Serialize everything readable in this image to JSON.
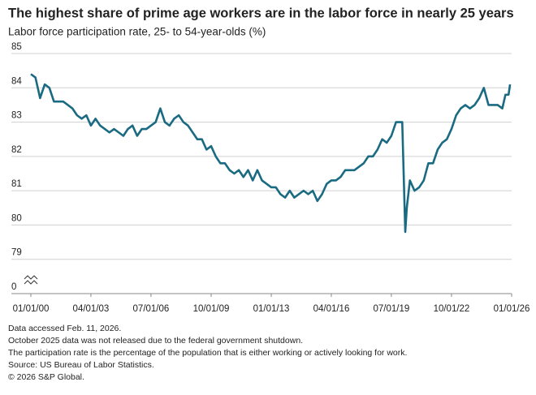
{
  "chart_data": {
    "type": "line",
    "title": "The highest share of prime age workers are in the labor force in nearly 25 years",
    "subtitle": "Labor force participation rate, 25- to 54-year-olds (%)",
    "x": [
      "01/01/00",
      "04/01/00",
      "07/01/00",
      "10/01/00",
      "01/01/01",
      "04/01/01",
      "07/01/01",
      "10/01/01",
      "01/01/02",
      "04/01/02",
      "07/01/02",
      "10/01/02",
      "01/01/03",
      "04/01/03",
      "07/01/03",
      "10/01/03",
      "01/01/04",
      "04/01/04",
      "07/01/04",
      "10/01/04",
      "01/01/05",
      "04/01/05",
      "07/01/05",
      "10/01/05",
      "01/01/06",
      "04/01/06",
      "07/01/06",
      "10/01/06",
      "01/01/07",
      "04/01/07",
      "07/01/07",
      "10/01/07",
      "01/01/08",
      "04/01/08",
      "07/01/08",
      "10/01/08",
      "01/01/09",
      "04/01/09",
      "07/01/09",
      "10/01/09",
      "01/01/10",
      "04/01/10",
      "07/01/10",
      "10/01/10",
      "01/01/11",
      "04/01/11",
      "07/01/11",
      "10/01/11",
      "01/01/12",
      "04/01/12",
      "07/01/12",
      "10/01/12",
      "01/01/13",
      "04/01/13",
      "07/01/13",
      "10/01/13",
      "01/01/14",
      "04/01/14",
      "07/01/14",
      "10/01/14",
      "01/01/15",
      "04/01/15",
      "07/01/15",
      "10/01/15",
      "01/01/16",
      "04/01/16",
      "07/01/16",
      "10/01/16",
      "01/01/17",
      "04/01/17",
      "07/01/17",
      "10/01/17",
      "01/01/18",
      "04/01/18",
      "07/01/18",
      "10/01/18",
      "01/01/19",
      "04/01/19",
      "07/01/19",
      "10/01/19",
      "01/01/20",
      "02/01/20",
      "04/01/20",
      "05/01/20",
      "07/01/20",
      "10/01/20",
      "01/01/21",
      "04/01/21",
      "07/01/21",
      "10/01/21",
      "01/01/22",
      "04/01/22",
      "07/01/22",
      "10/01/22",
      "01/01/23",
      "04/01/23",
      "07/01/23",
      "10/01/23",
      "01/01/24",
      "04/01/24",
      "07/01/24",
      "10/01/24",
      "01/01/25",
      "04/01/25",
      "07/01/25",
      "09/01/25",
      "11/01/25",
      "12/01/25"
    ],
    "series": [
      {
        "name": "Labor force participation rate",
        "color": "#1a6b82",
        "values": [
          84.4,
          84.3,
          83.7,
          84.1,
          84.0,
          83.6,
          83.6,
          83.6,
          83.5,
          83.4,
          83.2,
          83.1,
          83.2,
          82.9,
          83.1,
          82.9,
          82.8,
          82.7,
          82.8,
          82.7,
          82.6,
          82.8,
          82.9,
          82.6,
          82.8,
          82.8,
          82.9,
          83.0,
          83.4,
          83.0,
          82.9,
          83.1,
          83.2,
          83.0,
          82.9,
          82.7,
          82.5,
          82.5,
          82.2,
          82.3,
          82.0,
          81.8,
          81.8,
          81.6,
          81.5,
          81.6,
          81.4,
          81.6,
          81.3,
          81.6,
          81.3,
          81.2,
          81.1,
          81.1,
          80.9,
          80.8,
          81.0,
          80.8,
          80.9,
          81.0,
          80.9,
          81.0,
          80.7,
          80.9,
          81.2,
          81.3,
          81.3,
          81.4,
          81.6,
          81.6,
          81.6,
          81.7,
          81.8,
          82.0,
          82.0,
          82.2,
          82.5,
          82.4,
          82.6,
          83.0,
          83.0,
          83.0,
          79.8,
          80.5,
          81.3,
          81.0,
          81.1,
          81.3,
          81.8,
          81.8,
          82.2,
          82.4,
          82.5,
          82.8,
          83.2,
          83.4,
          83.5,
          83.4,
          83.5,
          83.7,
          84.0,
          83.5,
          83.5,
          83.5,
          83.4,
          83.8,
          83.8,
          84.1
        ]
      }
    ],
    "xlim": [
      "01/01/00",
      "01/01/26"
    ],
    "xticks": [
      "01/01/00",
      "04/01/03",
      "07/01/06",
      "10/01/09",
      "01/01/13",
      "04/01/16",
      "07/01/19",
      "10/01/22",
      "01/01/26"
    ],
    "ylim": [
      78,
      85
    ],
    "yticks": [
      0,
      79,
      80,
      81,
      82,
      83,
      84,
      85
    ],
    "axis_break": true,
    "grid": true,
    "notes": [
      "Data accessed Feb. 11, 2026.",
      "October 2025 data was not released due to the federal government shutdown.",
      "The participation rate is the percentage of the population that is either working or actively looking for work.",
      "Source: US Bureau of Labor Statistics.",
      "© 2026 S&P Global."
    ]
  }
}
